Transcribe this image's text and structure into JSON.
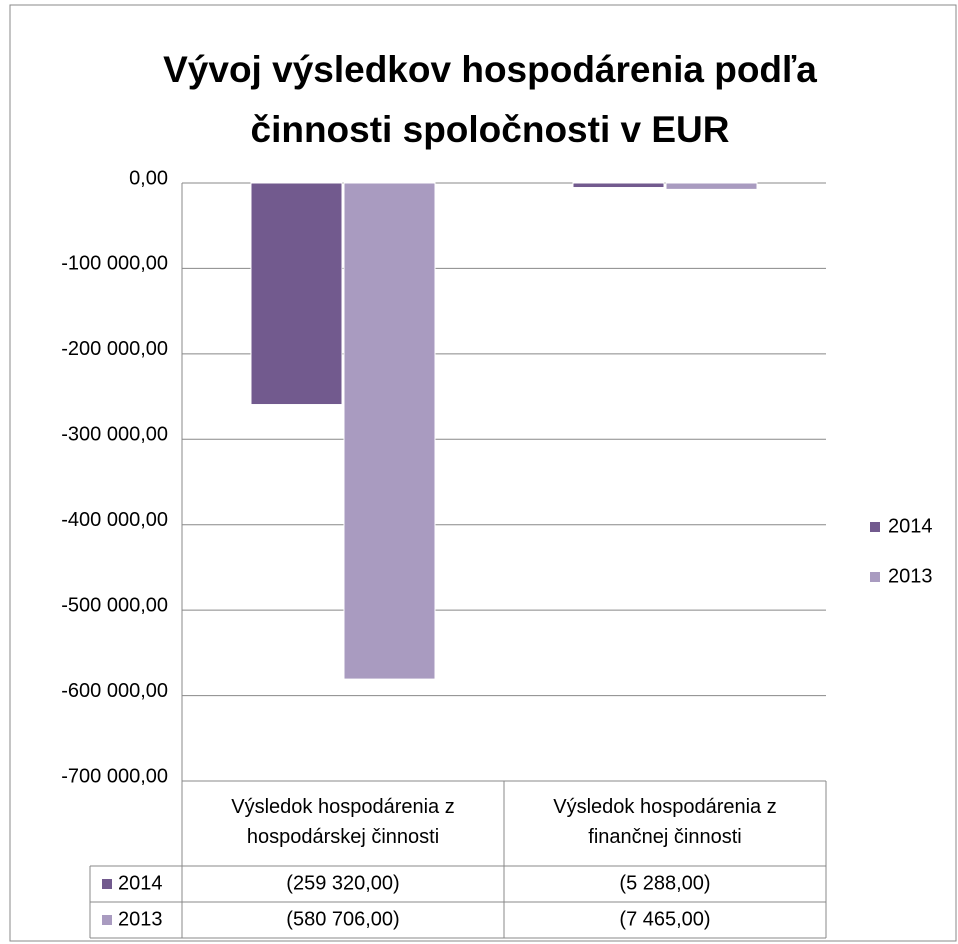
{
  "chart_data": {
    "type": "bar",
    "title": "Vývoj výsledkov hospodárenia podľa činnosti spoločnosti v EUR",
    "categories": [
      "Výsledok hospodárenia z hospodárskej činnosti",
      "Výsledok hospodárenia z finančnej činnosti"
    ],
    "series": [
      {
        "name": "2014",
        "color": "#725a8e",
        "values": [
          -259320,
          -5288
        ],
        "value_labels": [
          "(259 320,00)",
          "(5 288,00)"
        ]
      },
      {
        "name": "2013",
        "color": "#a99bc0",
        "values": [
          -580706,
          -7465
        ],
        "value_labels": [
          "(580 706,00)",
          "(7 465,00)"
        ]
      }
    ],
    "ylim": [
      -700000,
      0
    ],
    "yticks": [
      {
        "value": 0,
        "label": "0,00"
      },
      {
        "value": -100000,
        "label": "-100 000,00"
      },
      {
        "value": -200000,
        "label": "-200 000,00"
      },
      {
        "value": -300000,
        "label": "-300 000,00"
      },
      {
        "value": -400000,
        "label": "-400 000,00"
      },
      {
        "value": -500000,
        "label": "-500 000,00"
      },
      {
        "value": -600000,
        "label": "-600 000,00"
      },
      {
        "value": -700000,
        "label": "-700 000,00"
      }
    ],
    "grid": true,
    "legend": "right"
  }
}
